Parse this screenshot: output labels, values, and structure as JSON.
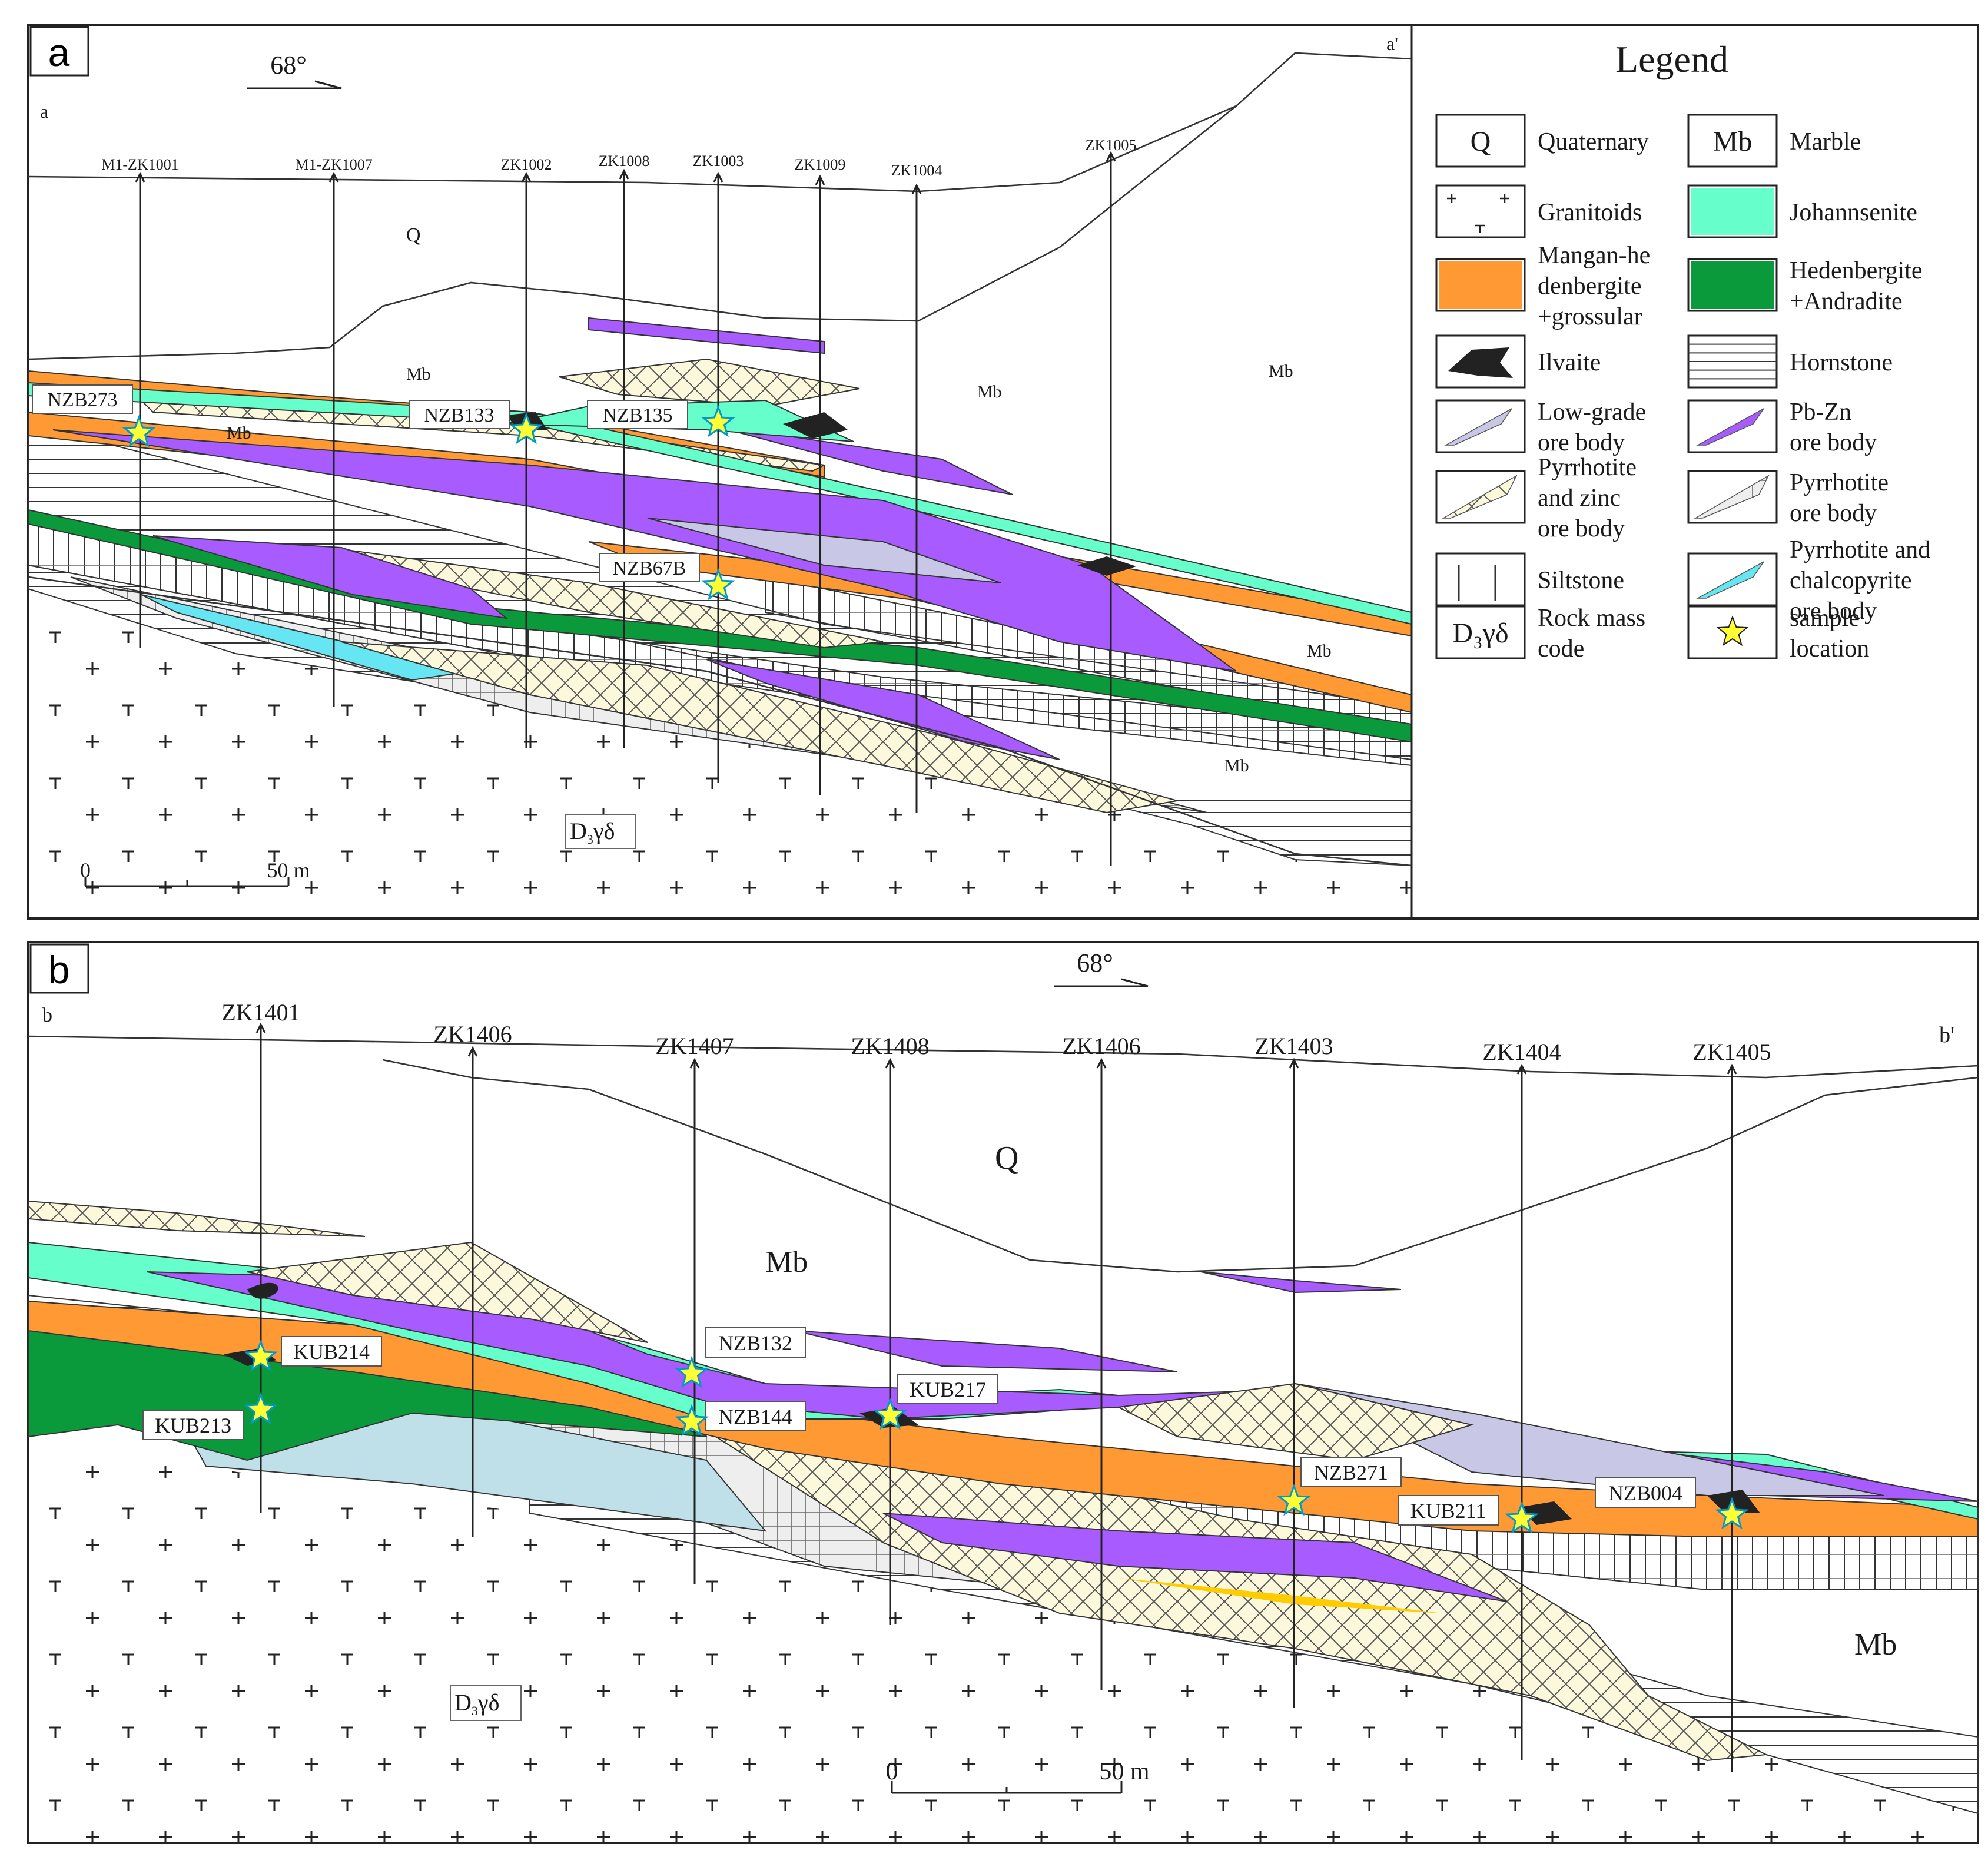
{
  "panel_a": {
    "label": "a",
    "orientation": "68°",
    "section_start": "a",
    "section_end": "a'",
    "drill_holes": [
      "M1-ZK1001",
      "M1-ZK1007",
      "ZK1002",
      "ZK1008",
      "ZK1003",
      "ZK1009",
      "ZK1004",
      "ZK1005"
    ],
    "unit_labels": {
      "quaternary": "Q",
      "marble_1": "Mb",
      "marble_2": "Mb",
      "marble_3": "Mb",
      "marble_4": "Mb",
      "marble_5": "Mb",
      "marble_6": "Mb"
    },
    "samples": [
      "NZB273",
      "NZB133",
      "NZB135",
      "NZB67B"
    ],
    "scale": {
      "start": "0",
      "end": "50 m"
    },
    "rock_code": {
      "base": "D",
      "sub": "3",
      "rest": "γδ"
    }
  },
  "panel_b": {
    "label": "b",
    "orientation": "68°",
    "section_start": "b",
    "section_end": "b'",
    "drill_holes": [
      "ZK1401",
      "ZK1406",
      "ZK1407",
      "ZK1408",
      "ZK1406",
      "ZK1403",
      "ZK1404",
      "ZK1405"
    ],
    "unit_labels": {
      "quaternary": "Q",
      "marble_1": "Mb",
      "marble_2": "Mb"
    },
    "samples": [
      "KUB214",
      "KUB213",
      "NZB132",
      "NZB144",
      "KUB217",
      "NZB271",
      "KUB211",
      "NZB004"
    ],
    "scale": {
      "start": "0",
      "end": "50 m"
    },
    "rock_code": {
      "base": "D",
      "sub": "3",
      "rest": "γδ"
    }
  },
  "legend": {
    "title": "Legend",
    "items": [
      {
        "key": "quaternary",
        "symbol_text": "Q",
        "lines": [
          "Quaternary"
        ]
      },
      {
        "key": "marble",
        "symbol_text": "Mb",
        "lines": [
          "Marble"
        ]
      },
      {
        "key": "granitoids",
        "lines": [
          "Granitoids"
        ]
      },
      {
        "key": "johannsenite",
        "lines": [
          "Johannsenite"
        ],
        "color": "#66ffcc"
      },
      {
        "key": "mangan",
        "lines": [
          "Mangan-he",
          "denbergite",
          "+grossular"
        ],
        "color": "#ff9933"
      },
      {
        "key": "hedenbergite",
        "lines": [
          "Hedenbergite",
          "+Andradite"
        ],
        "color": "#0a9a3c"
      },
      {
        "key": "ilvaite",
        "lines": [
          "Ilvaite"
        ],
        "color": "#222222"
      },
      {
        "key": "hornstone",
        "lines": [
          "Hornstone"
        ]
      },
      {
        "key": "lowgrade",
        "lines": [
          "Low-grade",
          "ore  body"
        ],
        "color": "#c8c8e6"
      },
      {
        "key": "pbzn",
        "lines": [
          "Pb-Zn",
          "ore body"
        ],
        "color": "#a85cff"
      },
      {
        "key": "pyzn",
        "lines": [
          "Pyrrhotite",
          "and zinc",
          "ore  body"
        ],
        "color": "#fbf8dc"
      },
      {
        "key": "pyrr",
        "lines": [
          "Pyrrhotite",
          "ore body"
        ],
        "color": "#eeeeee"
      },
      {
        "key": "siltstone",
        "lines": [
          "Siltstone"
        ]
      },
      {
        "key": "pycu",
        "lines": [
          "Pyrrhotite and",
          "chalcopyrite",
          "ore body"
        ],
        "color": "#66e6f2"
      },
      {
        "key": "rockcode",
        "symbol_text": "D₃γδ",
        "lines": [
          "Rock mass",
          "code"
        ]
      },
      {
        "key": "sample",
        "lines": [
          "sample",
          "location"
        ],
        "color": "#ffff33"
      }
    ]
  }
}
